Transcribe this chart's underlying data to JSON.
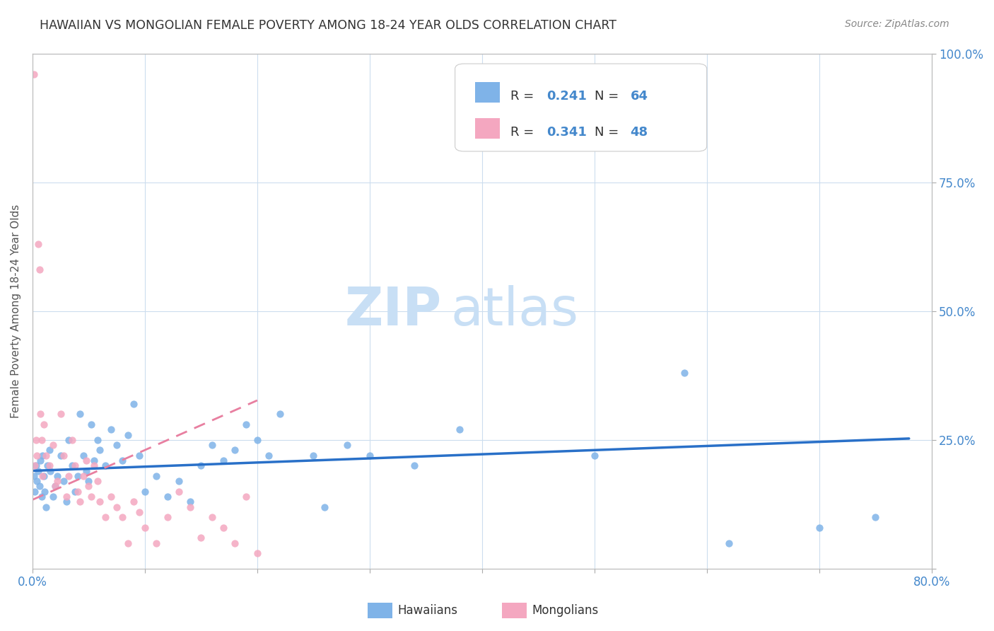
{
  "title": "HAWAIIAN VS MONGOLIAN FEMALE POVERTY AMONG 18-24 YEAR OLDS CORRELATION CHART",
  "source": "Source: ZipAtlas.com",
  "ylabel": "Female Poverty Among 18-24 Year Olds",
  "xlim": [
    0.0,
    0.8
  ],
  "ylim": [
    0.0,
    1.0
  ],
  "hawaiian_color": "#7fb3e8",
  "mongolian_color": "#f4a7c0",
  "hawaiian_R": 0.241,
  "hawaiian_N": 64,
  "mongolian_R": 0.341,
  "mongolian_N": 48,
  "trend_blue_color": "#2970c8",
  "trend_pink_color": "#e87fa0",
  "watermark_zip": "ZIP",
  "watermark_atlas": "atlas",
  "watermark_color_zip": "#c8dff5",
  "watermark_color_atlas": "#c8dff5",
  "legend_blue_label": "Hawaiians",
  "legend_pink_label": "Mongolians",
  "background_color": "#ffffff",
  "hawaiian_x": [
    0.001,
    0.002,
    0.003,
    0.004,
    0.005,
    0.006,
    0.007,
    0.008,
    0.009,
    0.01,
    0.011,
    0.012,
    0.013,
    0.015,
    0.016,
    0.018,
    0.02,
    0.022,
    0.025,
    0.028,
    0.03,
    0.032,
    0.035,
    0.038,
    0.04,
    0.042,
    0.045,
    0.048,
    0.05,
    0.052,
    0.055,
    0.058,
    0.06,
    0.065,
    0.07,
    0.075,
    0.08,
    0.085,
    0.09,
    0.095,
    0.1,
    0.11,
    0.12,
    0.13,
    0.14,
    0.15,
    0.16,
    0.17,
    0.18,
    0.19,
    0.2,
    0.21,
    0.22,
    0.25,
    0.26,
    0.28,
    0.3,
    0.34,
    0.38,
    0.5,
    0.58,
    0.62,
    0.7,
    0.75
  ],
  "hawaiian_y": [
    0.18,
    0.15,
    0.2,
    0.17,
    0.19,
    0.16,
    0.21,
    0.14,
    0.22,
    0.18,
    0.15,
    0.12,
    0.2,
    0.23,
    0.19,
    0.14,
    0.16,
    0.18,
    0.22,
    0.17,
    0.13,
    0.25,
    0.2,
    0.15,
    0.18,
    0.3,
    0.22,
    0.19,
    0.17,
    0.28,
    0.21,
    0.25,
    0.23,
    0.2,
    0.27,
    0.24,
    0.21,
    0.26,
    0.32,
    0.22,
    0.15,
    0.18,
    0.14,
    0.17,
    0.13,
    0.2,
    0.24,
    0.21,
    0.23,
    0.28,
    0.25,
    0.22,
    0.3,
    0.22,
    0.12,
    0.24,
    0.22,
    0.2,
    0.27,
    0.22,
    0.38,
    0.05,
    0.08,
    0.1
  ],
  "mongolian_x": [
    0.001,
    0.002,
    0.003,
    0.004,
    0.005,
    0.006,
    0.007,
    0.008,
    0.009,
    0.01,
    0.012,
    0.015,
    0.018,
    0.02,
    0.022,
    0.025,
    0.028,
    0.03,
    0.032,
    0.035,
    0.038,
    0.04,
    0.042,
    0.045,
    0.048,
    0.05,
    0.052,
    0.055,
    0.058,
    0.06,
    0.065,
    0.07,
    0.075,
    0.08,
    0.085,
    0.09,
    0.095,
    0.1,
    0.11,
    0.12,
    0.13,
    0.14,
    0.15,
    0.16,
    0.17,
    0.18,
    0.19,
    0.2
  ],
  "mongolian_y": [
    0.96,
    0.2,
    0.25,
    0.22,
    0.63,
    0.58,
    0.3,
    0.25,
    0.18,
    0.28,
    0.22,
    0.2,
    0.24,
    0.16,
    0.17,
    0.3,
    0.22,
    0.14,
    0.18,
    0.25,
    0.2,
    0.15,
    0.13,
    0.18,
    0.21,
    0.16,
    0.14,
    0.2,
    0.17,
    0.13,
    0.1,
    0.14,
    0.12,
    0.1,
    0.05,
    0.13,
    0.11,
    0.08,
    0.05,
    0.1,
    0.15,
    0.12,
    0.06,
    0.1,
    0.08,
    0.05,
    0.14,
    0.03
  ]
}
